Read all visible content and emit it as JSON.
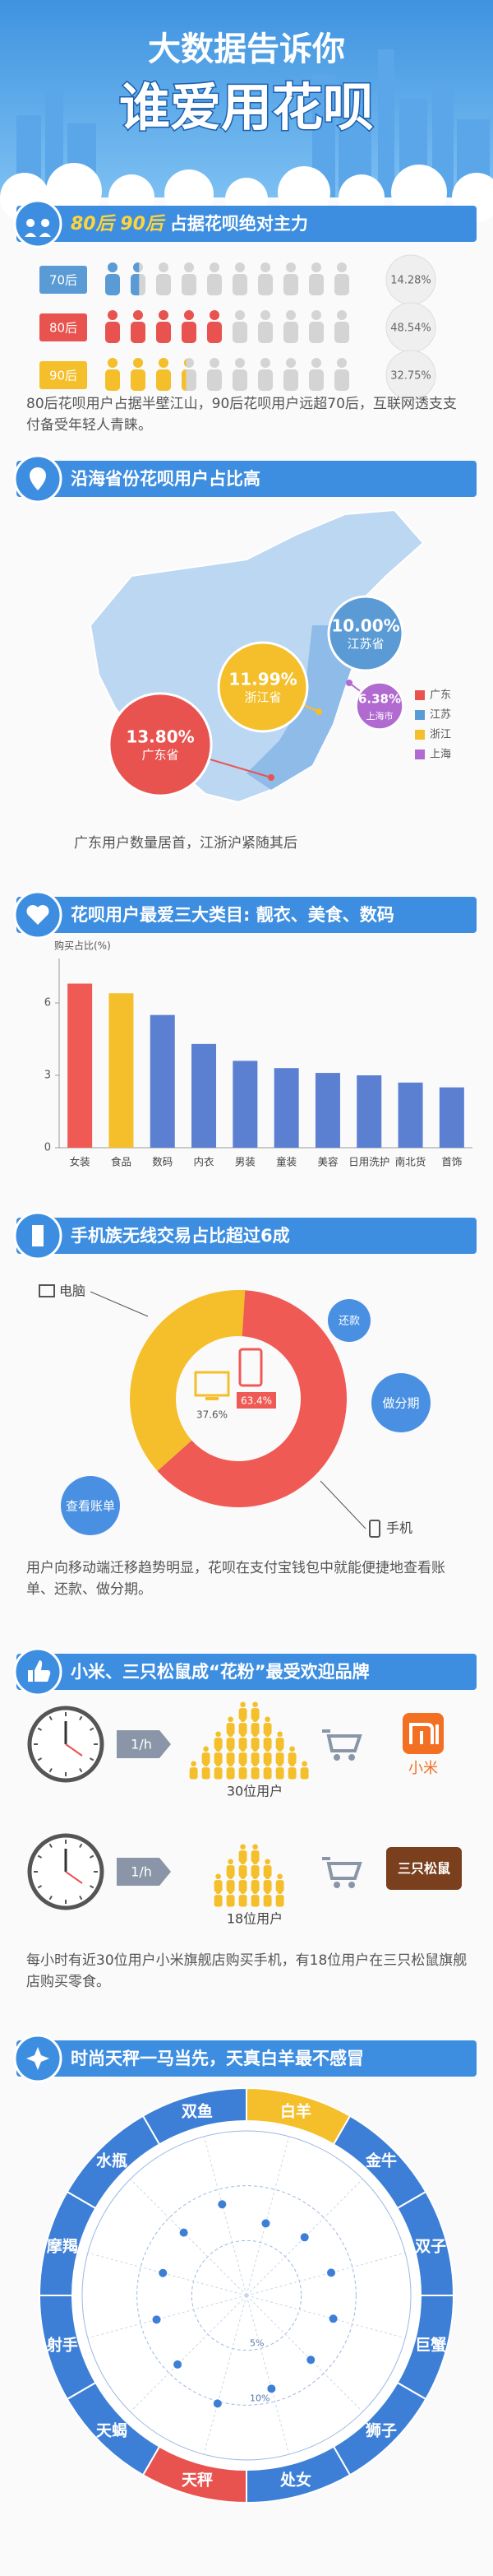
{
  "header": {
    "line1": "大数据告诉你",
    "line2": "谁爱用花呗"
  },
  "age": {
    "highlight": "80后 90后",
    "title": "占据花呗绝对主力",
    "chart": {
      "type": "pictogram",
      "categories": [
        "70后",
        "80后",
        "90后"
      ],
      "values": [
        14.28,
        48.54,
        32.75
      ],
      "value_labels": [
        "14.28%",
        "48.54%",
        "32.75%"
      ],
      "colors": [
        "#5b9bd5",
        "#e9534f",
        "#f4bf2a"
      ],
      "xlim": [
        0,
        100
      ]
    },
    "note": "80后花呗用户占据半壁江山，90后花呗用户远超70后，互联网透支支付备受年轻人青睐。"
  },
  "region": {
    "title": "沿海省份花呗用户占比高",
    "chart": {
      "type": "bubble-map",
      "categories": [
        "广东",
        "江苏",
        "浙江",
        "上海"
      ],
      "region_labels": [
        "广东省",
        "江苏省",
        "浙江省",
        "上海市"
      ],
      "values": [
        13.8,
        10.0,
        11.99,
        6.38
      ],
      "value_labels": [
        "13.80%",
        "10.00%",
        "11.99%",
        "6.38%"
      ],
      "colors": [
        "#e9534f",
        "#5b9bd5",
        "#f4bf2a",
        "#b06ad0"
      ],
      "legend": "right"
    },
    "note": "广东用户数量居首，江浙沪紧随其后"
  },
  "category": {
    "title": "花呗用户最爱三大类目: 靓衣、美食、数码",
    "chart": {
      "type": "bar",
      "ylabel": "购买占比(%)",
      "categories": [
        "女装",
        "食品",
        "数码",
        "内衣",
        "男装",
        "童装",
        "美容",
        "日用洗护",
        "南北货",
        "首饰"
      ],
      "values": [
        6.8,
        6.4,
        5.5,
        4.3,
        3.6,
        3.3,
        3.1,
        3.0,
        2.7,
        2.5
      ],
      "colors": [
        "#ef5a55",
        "#f4bf2a",
        "#5b7fd1",
        "#5b7fd1",
        "#5b7fd1",
        "#5b7fd1",
        "#5b7fd1",
        "#5b7fd1",
        "#5b7fd1",
        "#5b7fd1"
      ],
      "ylim": [
        0,
        7.5
      ],
      "yticks": [
        0,
        3,
        6
      ]
    }
  },
  "mobile": {
    "title": "手机族无线交易占比超过6成",
    "chart": {
      "type": "donut",
      "categories": [
        "手机",
        "电脑"
      ],
      "values": [
        63.4,
        37.6
      ],
      "value_labels": [
        "63.4%",
        "37.6%"
      ],
      "colors": [
        "#ef5a55",
        "#f4bf2a"
      ]
    },
    "features": [
      "还款",
      "做分期",
      "查看账单"
    ],
    "note": "用户向移动端迁移趋势明显，花呗在支付宝钱包中就能便捷地查看账单、还款、做分期。"
  },
  "brands": {
    "title": "小米、三只松鼠成“花粉”最受欢迎品牌",
    "rate": "1/h",
    "chart": {
      "type": "pictogram",
      "categories": [
        "小米",
        "三只松鼠"
      ],
      "values": [
        30,
        18
      ],
      "value_labels": [
        "30位用户",
        "18位用户"
      ],
      "color": "#f4bf2a"
    },
    "note": "每小时有近30位用户小米旗舰店购买手机，有18位用户在三只松鼠旗舰店购买零食。"
  },
  "zodiac": {
    "title": "时尚天秤一马当先，天真白羊最不感冒",
    "chart": {
      "type": "radar",
      "categories": [
        "双鱼",
        "白羊",
        "金牛",
        "双子",
        "巨蟹",
        "狮子",
        "处女",
        "天秤",
        "天蝎",
        "射手",
        "摩羯",
        "水瓶"
      ],
      "values": [
        8.6,
        6.8,
        7.5,
        8.0,
        8.2,
        8.3,
        8.8,
        10.2,
        8.9,
        8.5,
        7.9,
        8.1
      ],
      "colors": [
        "#3d7fd6",
        "#f4bf2a",
        "#3d7fd6",
        "#3d7fd6",
        "#3d7fd6",
        "#3d7fd6",
        "#3d7fd6",
        "#e9534f",
        "#3d7fd6",
        "#3d7fd6",
        "#3d7fd6",
        "#3d7fd6"
      ],
      "color": "#3d7fd6",
      "rlim": [
        0,
        15
      ],
      "rticks": [
        {
          "value": 5,
          "label": "5%"
        },
        {
          "value": 10,
          "label": "10%"
        }
      ]
    }
  }
}
